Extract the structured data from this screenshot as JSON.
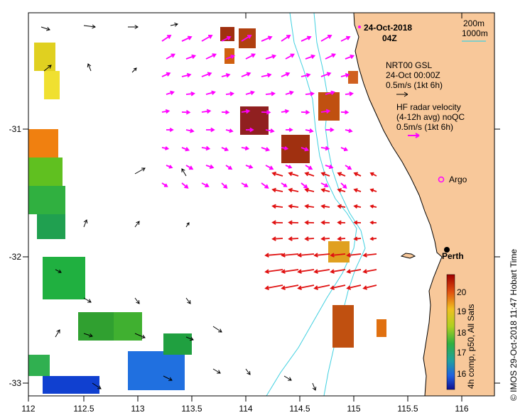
{
  "title": {
    "date": "24-Oct-2018",
    "time": "04Z"
  },
  "isobath_legend": {
    "line1": "200m",
    "line2": "1000m",
    "color": "#40d0e0"
  },
  "model_legend": {
    "line1": "NRT00 GSL",
    "line2": "24-Oct 00:00Z",
    "line3": "0.5m/s (1kt 6h)",
    "arrow_color": "#000000"
  },
  "radar_legend": {
    "line1": "HF radar velocity",
    "line2": "(4-12h avg) noQC",
    "line3": "0.5m/s (1kt 6h)",
    "arrow_color": "#ff00ff"
  },
  "argo": {
    "label": "Argo",
    "color": "#ff00ff"
  },
  "place": {
    "label": "Perth"
  },
  "colorbar": {
    "ticks": [
      "20",
      "19",
      "18",
      "17",
      "16"
    ],
    "caption": "4h comp, p50, All Sats"
  },
  "credit": "©  IMOS 29-Oct-2018 11:47 Hobart Time",
  "axes": {
    "x_ticks": [
      "112",
      "112.5",
      "113",
      "113.5",
      "114",
      "114.5",
      "115",
      "115.5",
      "116"
    ],
    "y_ticks": [
      "-31",
      "-32",
      "-33"
    ]
  },
  "colors": {
    "land": "#f8c89a",
    "radar_red": "#e01010",
    "radar_magenta": "#ff00ff",
    "model_black": "#000000",
    "isobath": "#40d0e0"
  }
}
